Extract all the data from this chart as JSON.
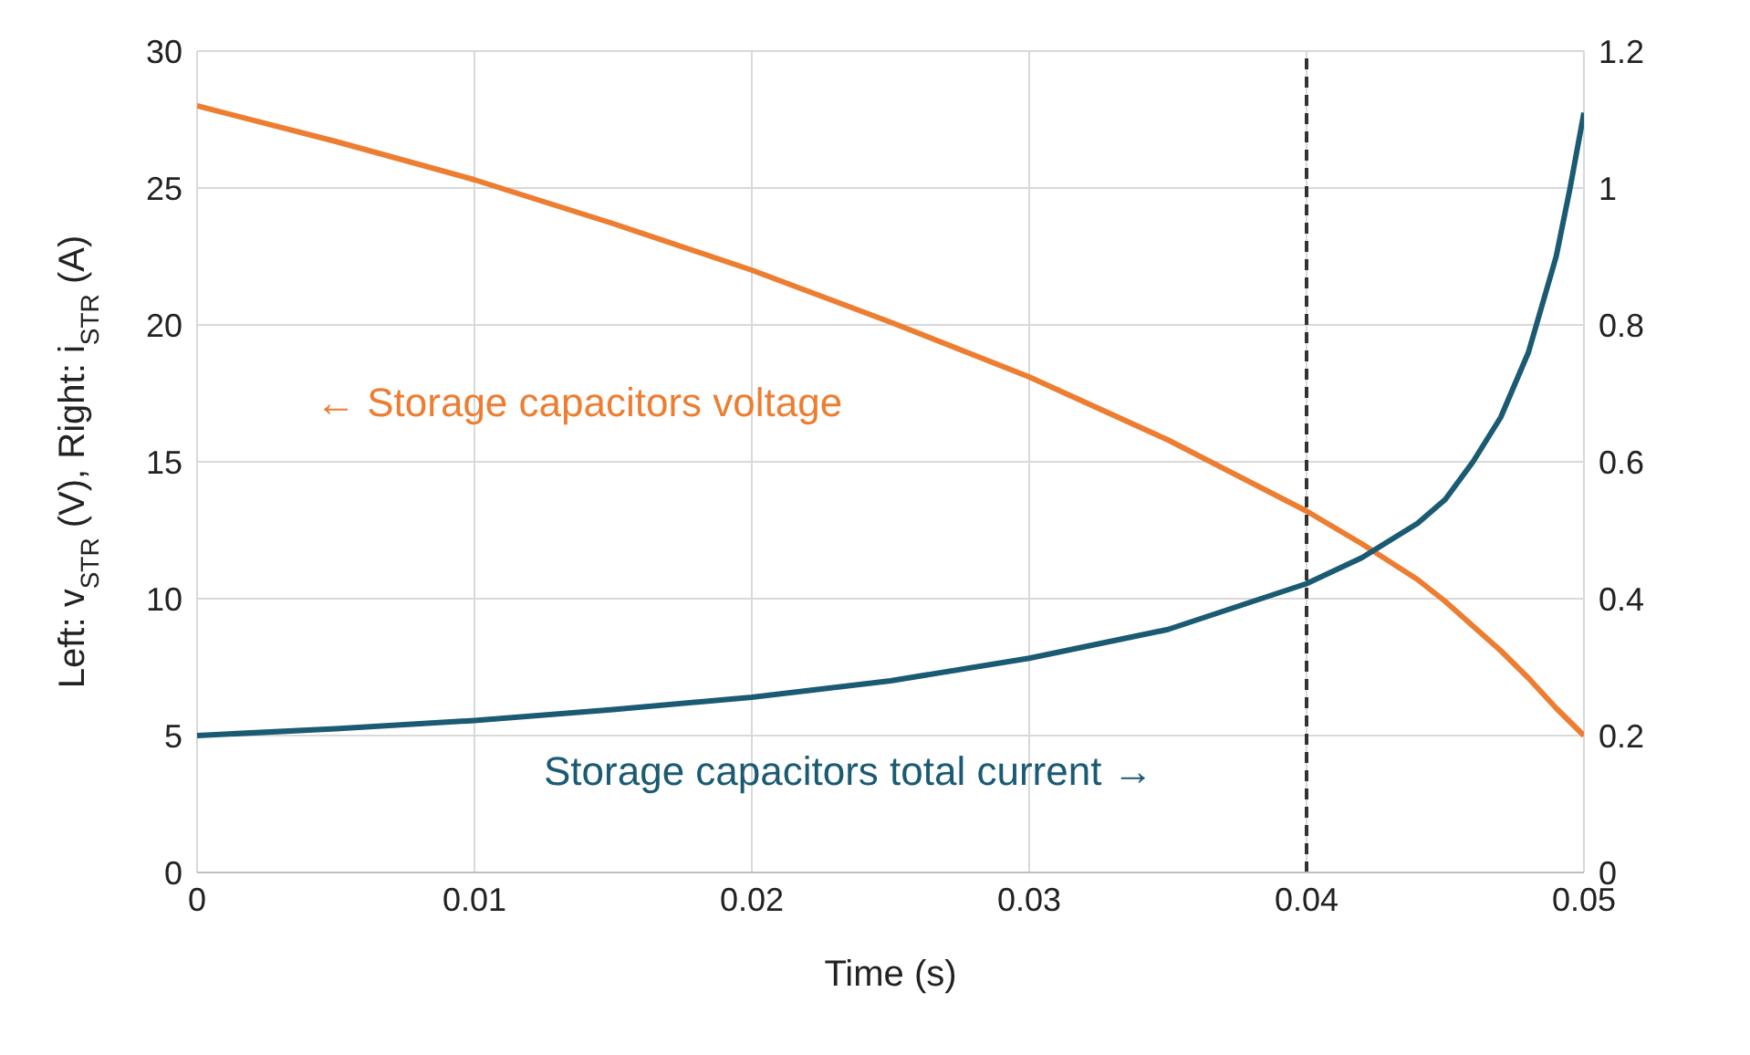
{
  "chart_data": {
    "type": "line",
    "xlabel": "Time (s)",
    "ylabel": "Left: v$_{STR}$ (V), Right: i$_{STR}$ (A)",
    "x": [
      0,
      0.005,
      0.01,
      0.015,
      0.02,
      0.025,
      0.03,
      0.035,
      0.04,
      0.042,
      0.044,
      0.045,
      0.046,
      0.047,
      0.048,
      0.049,
      0.0495,
      0.05
    ],
    "series": [
      {
        "color": "#ed7d31",
        "values": [
          28,
          26.7,
          25.3,
          23.7,
          22.0,
          20.1,
          18.1,
          15.8,
          13.2,
          12.0,
          10.7,
          9.9,
          9.0,
          8.1,
          7.1,
          6.0,
          5.5,
          5.0
        ]
      },
      {
        "color": "#1a5a72",
        "axis": "y2",
        "values": [
          0.2,
          0.21,
          0.222,
          0.238,
          0.256,
          0.28,
          0.313,
          0.355,
          0.422,
          0.46,
          0.51,
          0.545,
          0.6,
          0.665,
          0.76,
          0.9,
          1.0,
          1.11
        ]
      }
    ],
    "xlim": [
      0,
      0.05
    ],
    "xticks": [
      0,
      0.01,
      0.02,
      0.03,
      0.04,
      0.05
    ],
    "ylim": [
      0,
      30
    ],
    "yticks": [
      0,
      5,
      10,
      15,
      20,
      25,
      30
    ],
    "y2lim": [
      0,
      1.2
    ],
    "y2ticks": [
      0,
      0.2,
      0.4,
      0.6,
      0.8,
      1,
      1.2
    ],
    "ref_lines": [
      {
        "axis": "x",
        "value": 0.04,
        "line_style": "dashed",
        "color": "#333333"
      }
    ],
    "annotations": [
      "← Storage capacitors voltage",
      "Storage capacitors total current →"
    ],
    "grid": true,
    "line_style": "solid",
    "marker": "none"
  }
}
